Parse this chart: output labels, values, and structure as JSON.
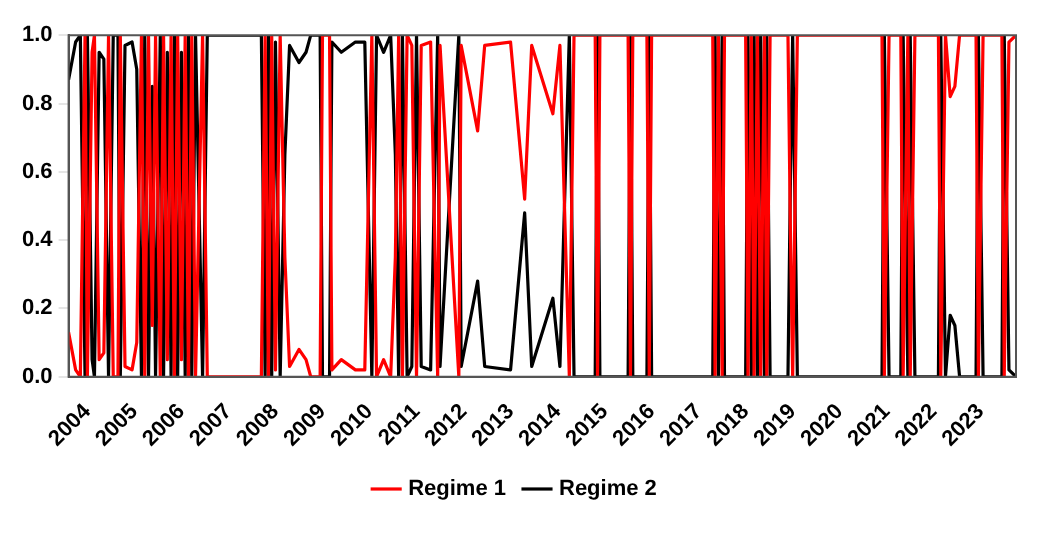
{
  "chart_data": {
    "type": "line",
    "legend": "bottom",
    "marker": "none",
    "line_style": "solid",
    "x": [
      2003.6,
      2003.75,
      2003.85,
      2003.95,
      2004.0,
      2004.1,
      2004.15,
      2004.25,
      2004.35,
      2004.45,
      2004.55,
      2004.65,
      2004.7,
      2004.8,
      2004.95,
      2005.05,
      2005.15,
      2005.22,
      2005.3,
      2005.38,
      2005.45,
      2005.55,
      2005.62,
      2005.7,
      2005.78,
      2005.85,
      2005.92,
      2006.0,
      2006.08,
      2006.15,
      2006.22,
      2006.3,
      2006.45,
      2006.55,
      2007.7,
      2007.78,
      2007.85,
      2007.92,
      2008.0,
      2008.1,
      2008.2,
      2008.3,
      2008.5,
      2008.65,
      2008.75,
      2008.95,
      2009.0,
      2009.15,
      2009.2,
      2009.4,
      2009.7,
      2009.9,
      2010.05,
      2010.15,
      2010.3,
      2010.45,
      2010.55,
      2010.62,
      2010.7,
      2010.8,
      2010.9,
      2011.0,
      2011.1,
      2011.3,
      2011.45,
      2011.5,
      2011.9,
      2011.95,
      2012.3,
      2012.45,
      2013.0,
      2013.3,
      2013.45,
      2013.9,
      2014.05,
      2014.25,
      2014.35,
      2014.8,
      2014.85,
      2014.9,
      2015.5,
      2015.55,
      2015.6,
      2015.9,
      2015.95,
      2016.0,
      2017.3,
      2017.35,
      2017.42,
      2017.5,
      2017.55,
      2018.0,
      2018.05,
      2018.12,
      2018.18,
      2018.25,
      2018.32,
      2018.4,
      2018.45,
      2018.52,
      2018.9,
      2018.95,
      2019.0,
      2019.1,
      2020.9,
      2020.95,
      2021.05,
      2021.3,
      2021.35,
      2021.45,
      2021.5,
      2021.6,
      2022.1,
      2022.15,
      2022.25,
      2022.35,
      2022.45,
      2022.55,
      2022.9,
      2022.95,
      2023.05,
      2023.45,
      2023.5,
      2023.6,
      2023.75
    ],
    "series": [
      {
        "name": "Regime 1",
        "color": "#ff0000",
        "values": [
          0.13,
          0.02,
          0,
          1,
          0,
          0.95,
          1,
          0.05,
          0.07,
          1,
          0,
          0,
          1,
          0.03,
          0.02,
          0.1,
          1,
          0,
          1,
          0.15,
          1,
          0,
          1,
          0.05,
          1,
          0,
          1,
          0.05,
          1,
          0,
          1,
          0,
          1,
          0,
          0,
          1,
          0,
          1,
          0.02,
          1,
          0.35,
          0.03,
          0.08,
          0.05,
          0,
          0,
          1,
          1,
          0.02,
          0.05,
          0.02,
          0.02,
          1,
          0,
          0.05,
          0,
          0.35,
          1,
          0,
          1,
          0.97,
          0,
          0.97,
          0.98,
          0,
          0.97,
          0,
          0.97,
          0.72,
          0.97,
          0.98,
          0.52,
          0.97,
          0.77,
          0.97,
          0,
          1,
          1,
          0,
          1,
          1,
          0,
          1,
          1,
          0,
          1,
          1,
          0,
          1,
          0,
          1,
          1,
          0,
          1,
          0,
          1,
          0,
          1,
          0,
          1,
          1,
          0.45,
          0,
          1,
          1,
          0,
          1,
          1,
          0,
          1,
          0,
          1,
          1,
          0,
          1,
          0.82,
          0.85,
          1,
          1,
          0,
          1,
          1,
          0,
          0.98,
          1
        ]
      },
      {
        "name": "Regime 2",
        "color": "#000000",
        "values": [
          0.87,
          0.98,
          1,
          0,
          1,
          0.05,
          0,
          0.95,
          0.93,
          0,
          1,
          1,
          0,
          0.97,
          0.98,
          0.9,
          0,
          1,
          0,
          0.85,
          0,
          1,
          0,
          0.95,
          0,
          1,
          0,
          0.95,
          0,
          1,
          0,
          1,
          0,
          1,
          1,
          0,
          1,
          0,
          0.98,
          0,
          0.65,
          0.97,
          0.92,
          0.95,
          1,
          1,
          0,
          0,
          0.98,
          0.95,
          0.98,
          0.98,
          0,
          1,
          0.95,
          1,
          0.65,
          0,
          1,
          0,
          0.03,
          1,
          0.03,
          0.02,
          1,
          0.03,
          1,
          0.03,
          0.28,
          0.03,
          0.02,
          0.48,
          0.03,
          0.23,
          0.03,
          1,
          0,
          0,
          1,
          0,
          0,
          1,
          0,
          0,
          1,
          0,
          0,
          1,
          0,
          1,
          0,
          0,
          1,
          0,
          1,
          0,
          1,
          0,
          1,
          0,
          0,
          0.55,
          1,
          0,
          0,
          1,
          0,
          0,
          1,
          0,
          1,
          0,
          0,
          1,
          0,
          0.18,
          0.15,
          0,
          0,
          1,
          0,
          0,
          1,
          0.02,
          0
        ]
      }
    ],
    "xlim": [
      2003.6,
      2023.75
    ],
    "xticks": [
      2004,
      2005,
      2006,
      2007,
      2008,
      2009,
      2010,
      2011,
      2012,
      2013,
      2014,
      2015,
      2016,
      2017,
      2018,
      2019,
      2020,
      2021,
      2022,
      2023
    ],
    "ylim": [
      0,
      1
    ],
    "yticks": [
      {
        "value": 0,
        "label": "0.0"
      },
      {
        "value": 0.2,
        "label": "0.2"
      },
      {
        "value": 0.4,
        "label": "0.4"
      },
      {
        "value": 0.6,
        "label": "0.6"
      },
      {
        "value": 0.8,
        "label": "0.8"
      },
      {
        "value": 1,
        "label": "1.0"
      }
    ]
  }
}
